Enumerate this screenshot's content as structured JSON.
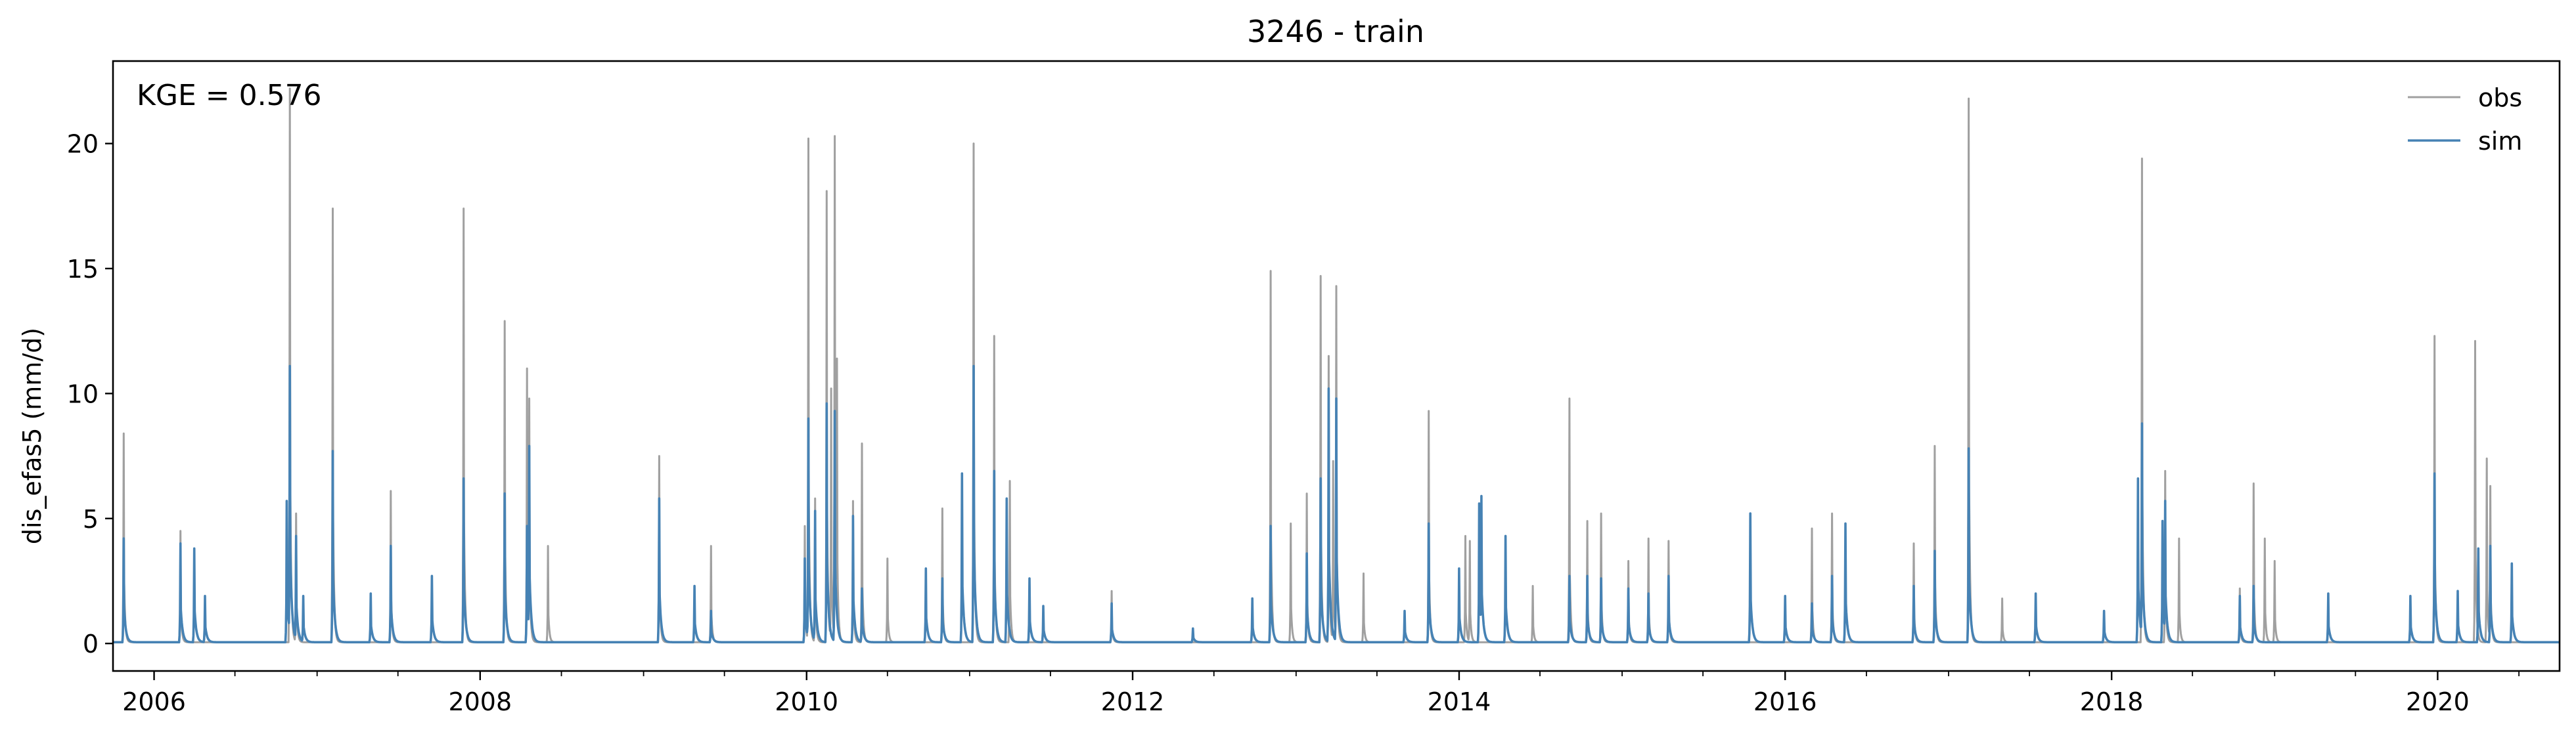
{
  "chart_data": {
    "type": "line",
    "title": "3246 - train",
    "xlabel": "",
    "ylabel": "dis_efas5 (mm/d)",
    "annotation": "KGE = 0.576",
    "x_range": [
      "2005-10-01",
      "2020-09-30"
    ],
    "xlim": [
      "2005-10-01",
      "2020-09-30"
    ],
    "ylim": [
      -1.1,
      23.3
    ],
    "grid": false,
    "legend_position": "top-right",
    "x_ticks": [
      "2006",
      "2008",
      "2010",
      "2012",
      "2014",
      "2016",
      "2018",
      "2020"
    ],
    "x_tick_dates": [
      "2006-01-01",
      "2008-01-01",
      "2010-01-01",
      "2012-01-01",
      "2014-01-01",
      "2016-01-01",
      "2018-01-01",
      "2020-01-01"
    ],
    "y_ticks": [
      0,
      5,
      10,
      15,
      20
    ],
    "series": [
      {
        "name": "obs",
        "color": "#a0a0a0",
        "events": [
          [
            "2005-10-25",
            8.4
          ],
          [
            "2006-03-01",
            4.5
          ],
          [
            "2006-11-01",
            22.2
          ],
          [
            "2006-11-15",
            5.2
          ],
          [
            "2007-02-05",
            17.4
          ],
          [
            "2007-06-15",
            6.1
          ],
          [
            "2007-11-25",
            17.4
          ],
          [
            "2008-02-25",
            12.9
          ],
          [
            "2008-04-15",
            11.0
          ],
          [
            "2008-04-20",
            9.8
          ],
          [
            "2008-06-01",
            3.9
          ],
          [
            "2009-02-05",
            7.5
          ],
          [
            "2009-06-01",
            3.9
          ],
          [
            "2009-12-28",
            4.7
          ],
          [
            "2010-01-05",
            20.2
          ],
          [
            "2010-01-20",
            5.8
          ],
          [
            "2010-02-15",
            18.1
          ],
          [
            "2010-02-25",
            10.2
          ],
          [
            "2010-03-05",
            20.3
          ],
          [
            "2010-03-10",
            11.4
          ],
          [
            "2010-04-15",
            5.7
          ],
          [
            "2010-05-05",
            8.0
          ],
          [
            "2010-07-01",
            3.4
          ],
          [
            "2010-11-01",
            5.4
          ],
          [
            "2011-01-10",
            20.0
          ],
          [
            "2011-02-25",
            12.3
          ],
          [
            "2011-04-01",
            6.5
          ],
          [
            "2011-11-15",
            2.1
          ],
          [
            "2012-11-05",
            14.9
          ],
          [
            "2012-12-20",
            4.8
          ],
          [
            "2013-01-25",
            6.0
          ],
          [
            "2013-02-25",
            14.7
          ],
          [
            "2013-03-15",
            11.5
          ],
          [
            "2013-03-25",
            7.3
          ],
          [
            "2013-04-01",
            14.3
          ],
          [
            "2013-06-01",
            2.8
          ],
          [
            "2013-10-25",
            9.3
          ],
          [
            "2014-01-15",
            4.3
          ],
          [
            "2014-01-25",
            4.1
          ],
          [
            "2014-06-15",
            2.3
          ],
          [
            "2014-09-05",
            9.8
          ],
          [
            "2014-10-15",
            4.9
          ],
          [
            "2014-11-15",
            5.2
          ],
          [
            "2015-01-15",
            3.3
          ],
          [
            "2015-03-01",
            4.2
          ],
          [
            "2015-04-15",
            4.1
          ],
          [
            "2016-03-01",
            4.6
          ],
          [
            "2016-04-15",
            5.2
          ],
          [
            "2016-10-15",
            4.0
          ],
          [
            "2016-12-01",
            7.9
          ],
          [
            "2017-02-15",
            21.8
          ],
          [
            "2017-05-01",
            1.8
          ],
          [
            "2018-03-10",
            19.4
          ],
          [
            "2018-05-01",
            6.9
          ],
          [
            "2018-06-01",
            4.2
          ],
          [
            "2018-10-15",
            2.2
          ],
          [
            "2018-11-15",
            6.4
          ],
          [
            "2018-12-10",
            4.2
          ],
          [
            "2019-01-01",
            3.3
          ],
          [
            "2019-12-25",
            12.3
          ],
          [
            "2020-03-25",
            12.1
          ],
          [
            "2020-04-20",
            7.4
          ],
          [
            "2020-04-28",
            6.3
          ]
        ]
      },
      {
        "name": "sim",
        "color": "#4682b4",
        "events": [
          [
            "2005-10-25",
            4.2
          ],
          [
            "2006-03-01",
            4.0
          ],
          [
            "2006-04-01",
            3.8
          ],
          [
            "2006-04-25",
            1.9
          ],
          [
            "2006-10-25",
            5.7
          ],
          [
            "2006-11-01",
            11.1
          ],
          [
            "2006-11-15",
            4.3
          ],
          [
            "2006-12-01",
            1.9
          ],
          [
            "2007-02-05",
            7.7
          ],
          [
            "2007-05-01",
            2.0
          ],
          [
            "2007-06-15",
            3.9
          ],
          [
            "2007-09-15",
            2.7
          ],
          [
            "2007-11-25",
            6.6
          ],
          [
            "2008-02-25",
            6.0
          ],
          [
            "2008-04-15",
            4.7
          ],
          [
            "2008-04-20",
            7.9
          ],
          [
            "2009-02-05",
            5.8
          ],
          [
            "2009-04-25",
            2.3
          ],
          [
            "2009-06-01",
            1.3
          ],
          [
            "2009-12-28",
            3.4
          ],
          [
            "2010-01-05",
            9.0
          ],
          [
            "2010-01-20",
            5.3
          ],
          [
            "2010-02-15",
            9.6
          ],
          [
            "2010-03-05",
            9.3
          ],
          [
            "2010-04-15",
            5.1
          ],
          [
            "2010-05-05",
            2.2
          ],
          [
            "2010-09-25",
            3.0
          ],
          [
            "2010-11-01",
            2.6
          ],
          [
            "2010-12-15",
            6.8
          ],
          [
            "2011-01-10",
            11.1
          ],
          [
            "2011-02-25",
            6.9
          ],
          [
            "2011-03-25",
            5.8
          ],
          [
            "2011-05-15",
            2.6
          ],
          [
            "2011-06-15",
            1.5
          ],
          [
            "2011-11-15",
            1.6
          ],
          [
            "2012-05-15",
            0.6
          ],
          [
            "2012-09-25",
            1.8
          ],
          [
            "2012-11-05",
            4.7
          ],
          [
            "2013-01-25",
            3.6
          ],
          [
            "2013-02-25",
            6.6
          ],
          [
            "2013-03-15",
            10.2
          ],
          [
            "2013-04-01",
            9.8
          ],
          [
            "2013-09-01",
            1.3
          ],
          [
            "2013-10-25",
            4.8
          ],
          [
            "2014-01-01",
            3.0
          ],
          [
            "2014-02-15",
            5.6
          ],
          [
            "2014-02-20",
            5.9
          ],
          [
            "2014-04-15",
            4.3
          ],
          [
            "2014-09-05",
            2.7
          ],
          [
            "2014-10-15",
            2.7
          ],
          [
            "2014-11-15",
            2.6
          ],
          [
            "2015-01-15",
            2.2
          ],
          [
            "2015-03-01",
            2.0
          ],
          [
            "2015-04-15",
            2.7
          ],
          [
            "2015-10-15",
            5.2
          ],
          [
            "2016-01-01",
            1.9
          ],
          [
            "2016-03-01",
            1.6
          ],
          [
            "2016-04-15",
            2.7
          ],
          [
            "2016-05-15",
            4.8
          ],
          [
            "2016-10-15",
            2.3
          ],
          [
            "2016-12-01",
            3.7
          ],
          [
            "2017-02-15",
            7.8
          ],
          [
            "2017-07-15",
            2.0
          ],
          [
            "2017-12-15",
            1.3
          ],
          [
            "2018-03-01",
            6.6
          ],
          [
            "2018-03-10",
            8.8
          ],
          [
            "2018-04-25",
            4.9
          ],
          [
            "2018-05-01",
            5.7
          ],
          [
            "2018-10-15",
            1.9
          ],
          [
            "2018-11-15",
            2.3
          ],
          [
            "2019-05-01",
            2.0
          ],
          [
            "2019-11-01",
            1.9
          ],
          [
            "2019-12-25",
            6.8
          ],
          [
            "2020-02-15",
            2.1
          ],
          [
            "2020-04-01",
            3.8
          ],
          [
            "2020-04-28",
            3.9
          ],
          [
            "2020-06-15",
            3.2
          ]
        ]
      }
    ]
  }
}
